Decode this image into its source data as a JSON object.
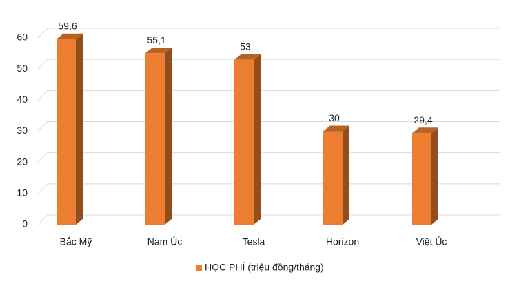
{
  "chart_data": {
    "type": "bar3d",
    "categories": [
      "Bắc Mỹ",
      "Nam Úc",
      "Tesla",
      "Horizon",
      "Việt Úc"
    ],
    "series": [
      {
        "name": "HỌC PHÍ (triệu đồng/tháng)",
        "color": "#ed7d31",
        "values": [
          59.6,
          55.1,
          53,
          30,
          29.4
        ],
        "value_labels": [
          "59,6",
          "55,1",
          "53",
          "30",
          "29,4"
        ]
      }
    ],
    "ylim": [
      0,
      60
    ],
    "yticks": [
      0,
      10,
      20,
      30,
      40,
      50,
      60
    ],
    "grid": true,
    "legend": "bottom"
  }
}
